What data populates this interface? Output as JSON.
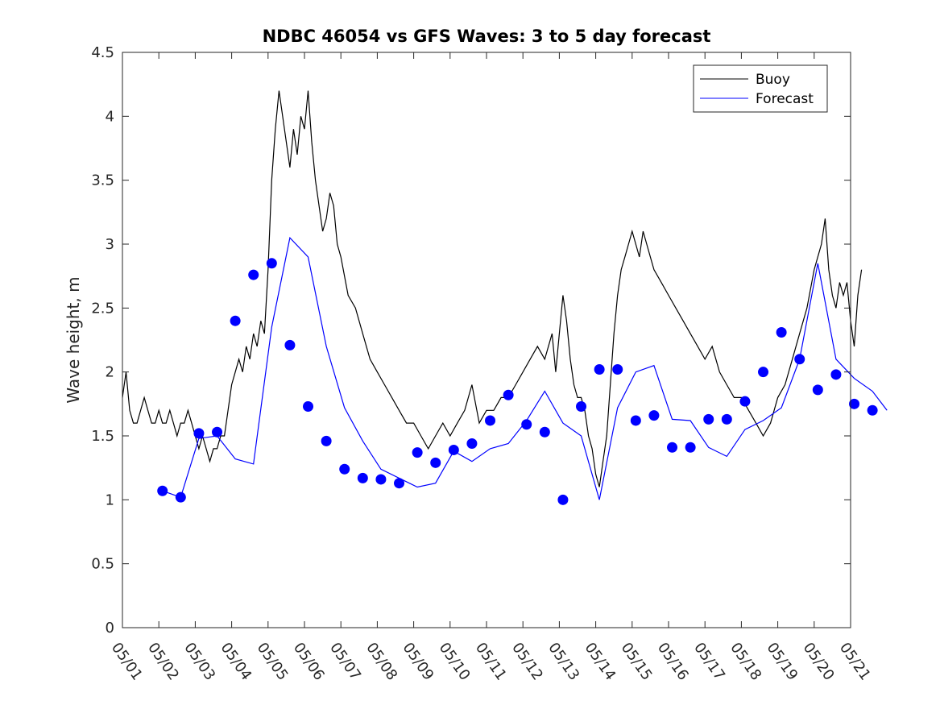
{
  "chart_data": {
    "type": "line",
    "title": "NDBC 46054 vs GFS Waves: 3 to 5 day forecast",
    "ylabel": "Wave height, m",
    "xlabel": "",
    "xlim": [
      "05/01",
      "05/21"
    ],
    "ylim": [
      0,
      4.5
    ],
    "yticks": [
      "0",
      "0.5",
      "1",
      "1.5",
      "2",
      "2.5",
      "3",
      "3.5",
      "4",
      "4.5"
    ],
    "xticks": [
      "05/01",
      "05/02",
      "05/03",
      "05/04",
      "05/05",
      "05/06",
      "05/07",
      "05/08",
      "05/09",
      "05/10",
      "05/11",
      "05/12",
      "05/13",
      "05/14",
      "05/15",
      "05/16",
      "05/17",
      "05/18",
      "05/19",
      "05/20",
      "05/21"
    ],
    "grid": false,
    "legend": {
      "position": "top-right",
      "entries": [
        "Buoy",
        "Forecast"
      ]
    },
    "colors": {
      "buoy": "#000000",
      "forecast": "#0000ff",
      "axis": "#262626"
    },
    "series": [
      {
        "name": "Buoy",
        "style": "line",
        "x": [
          0.0,
          0.1,
          0.2,
          0.3,
          0.4,
          0.5,
          0.6,
          0.7,
          0.8,
          0.9,
          1.0,
          1.1,
          1.2,
          1.3,
          1.4,
          1.5,
          1.6,
          1.7,
          1.8,
          1.9,
          2.0,
          2.1,
          2.2,
          2.3,
          2.4,
          2.5,
          2.6,
          2.7,
          2.8,
          2.9,
          3.0,
          3.1,
          3.2,
          3.3,
          3.4,
          3.5,
          3.6,
          3.7,
          3.8,
          3.9,
          4.0,
          4.1,
          4.2,
          4.3,
          4.4,
          4.5,
          4.6,
          4.7,
          4.8,
          4.9,
          5.0,
          5.1,
          5.2,
          5.3,
          5.4,
          5.5,
          5.6,
          5.7,
          5.8,
          5.9,
          6.0,
          6.2,
          6.4,
          6.6,
          6.8,
          7.0,
          7.2,
          7.4,
          7.6,
          7.8,
          8.0,
          8.2,
          8.4,
          8.6,
          8.8,
          9.0,
          9.2,
          9.4,
          9.6,
          9.8,
          10.0,
          10.2,
          10.4,
          10.6,
          10.8,
          11.0,
          11.2,
          11.4,
          11.6,
          11.8,
          11.9,
          12.0,
          12.1,
          12.2,
          12.3,
          12.4,
          12.5,
          12.6,
          12.7,
          12.8,
          12.9,
          13.0,
          13.1,
          13.2,
          13.3,
          13.4,
          13.5,
          13.6,
          13.7,
          13.8,
          13.9,
          14.0,
          14.1,
          14.2,
          14.3,
          14.4,
          14.5,
          14.6,
          14.8,
          15.0,
          15.2,
          15.4,
          15.6,
          15.8,
          16.0,
          16.2,
          16.4,
          16.6,
          16.8,
          17.0,
          17.2,
          17.4,
          17.6,
          17.8,
          18.0,
          18.2,
          18.4,
          18.6,
          18.8,
          19.0,
          19.2,
          19.3,
          19.4,
          19.5,
          19.6,
          19.7,
          19.8,
          19.9,
          20.0,
          20.1,
          20.2,
          20.3
        ],
        "y": [
          1.8,
          2.0,
          1.7,
          1.6,
          1.6,
          1.7,
          1.8,
          1.7,
          1.6,
          1.6,
          1.7,
          1.6,
          1.6,
          1.7,
          1.6,
          1.5,
          1.6,
          1.6,
          1.7,
          1.6,
          1.5,
          1.4,
          1.5,
          1.4,
          1.3,
          1.4,
          1.4,
          1.5,
          1.5,
          1.7,
          1.9,
          2.0,
          2.1,
          2.0,
          2.2,
          2.1,
          2.3,
          2.2,
          2.4,
          2.3,
          2.8,
          3.5,
          3.9,
          4.2,
          4.0,
          3.8,
          3.6,
          3.9,
          3.7,
          4.0,
          3.9,
          4.2,
          3.8,
          3.5,
          3.3,
          3.1,
          3.2,
          3.4,
          3.3,
          3.0,
          2.9,
          2.6,
          2.5,
          2.3,
          2.1,
          2.0,
          1.9,
          1.8,
          1.7,
          1.6,
          1.6,
          1.5,
          1.4,
          1.5,
          1.6,
          1.5,
          1.6,
          1.7,
          1.9,
          1.6,
          1.7,
          1.7,
          1.8,
          1.8,
          1.9,
          2.0,
          2.1,
          2.2,
          2.1,
          2.3,
          2.0,
          2.3,
          2.6,
          2.4,
          2.1,
          1.9,
          1.8,
          1.8,
          1.7,
          1.5,
          1.4,
          1.2,
          1.1,
          1.3,
          1.5,
          1.9,
          2.3,
          2.6,
          2.8,
          2.9,
          3.0,
          3.1,
          3.0,
          2.9,
          3.1,
          3.0,
          2.9,
          2.8,
          2.7,
          2.6,
          2.5,
          2.4,
          2.3,
          2.2,
          2.1,
          2.2,
          2.0,
          1.9,
          1.8,
          1.8,
          1.7,
          1.6,
          1.5,
          1.6,
          1.8,
          1.9,
          2.1,
          2.3,
          2.5,
          2.8,
          3.0,
          3.2,
          2.8,
          2.6,
          2.5,
          2.7,
          2.6,
          2.7,
          2.4,
          2.2,
          2.6,
          2.8
        ]
      },
      {
        "name": "Forecast",
        "style": "line",
        "x": [
          1.1,
          1.6,
          2.1,
          2.6,
          3.1,
          3.6,
          4.1,
          4.6,
          5.1,
          5.6,
          6.1,
          6.6,
          7.1,
          7.6,
          8.1,
          8.6,
          9.1,
          9.6,
          10.1,
          10.6,
          11.1,
          11.6,
          12.1,
          12.6,
          13.1,
          13.6,
          14.1,
          14.6,
          15.1,
          15.6,
          16.1,
          16.6,
          17.1,
          17.6,
          18.1,
          18.6,
          19.1,
          19.6,
          20.1,
          20.6,
          21.0
        ],
        "y": [
          1.07,
          1.02,
          1.48,
          1.5,
          1.32,
          1.28,
          2.35,
          3.05,
          2.9,
          2.2,
          1.72,
          1.46,
          1.24,
          1.17,
          1.1,
          1.13,
          1.38,
          1.3,
          1.4,
          1.44,
          1.62,
          1.85,
          1.6,
          1.5,
          1.0,
          1.72,
          2.0,
          2.05,
          1.63,
          1.62,
          1.41,
          1.34,
          1.55,
          1.62,
          1.72,
          2.1,
          2.85,
          2.1,
          1.95,
          1.85,
          1.7
        ]
      },
      {
        "name": "",
        "style": "markers",
        "x": [
          1.1,
          1.6,
          2.1,
          2.6,
          3.1,
          3.6,
          4.1,
          4.6,
          5.1,
          5.6,
          6.1,
          6.6,
          7.1,
          7.6,
          8.1,
          8.6,
          9.1,
          9.6,
          10.1,
          10.6,
          11.1,
          11.6,
          12.1,
          12.6,
          13.1,
          13.6,
          14.1,
          14.6,
          15.1,
          15.6,
          16.1,
          16.6,
          17.1,
          17.6,
          18.1,
          18.6,
          19.1,
          19.6,
          20.1,
          20.6
        ],
        "y": [
          1.07,
          1.02,
          1.52,
          1.53,
          2.4,
          2.76,
          2.85,
          2.21,
          1.73,
          1.46,
          1.24,
          1.17,
          1.16,
          1.13,
          1.37,
          1.29,
          1.39,
          1.44,
          1.62,
          1.82,
          1.59,
          1.53,
          1.0,
          1.73,
          2.02,
          2.02,
          1.62,
          1.66,
          1.41,
          1.41,
          1.63,
          1.63,
          1.77,
          2.0,
          2.31,
          2.1,
          1.86,
          1.98,
          1.75,
          1.7
        ]
      }
    ]
  }
}
